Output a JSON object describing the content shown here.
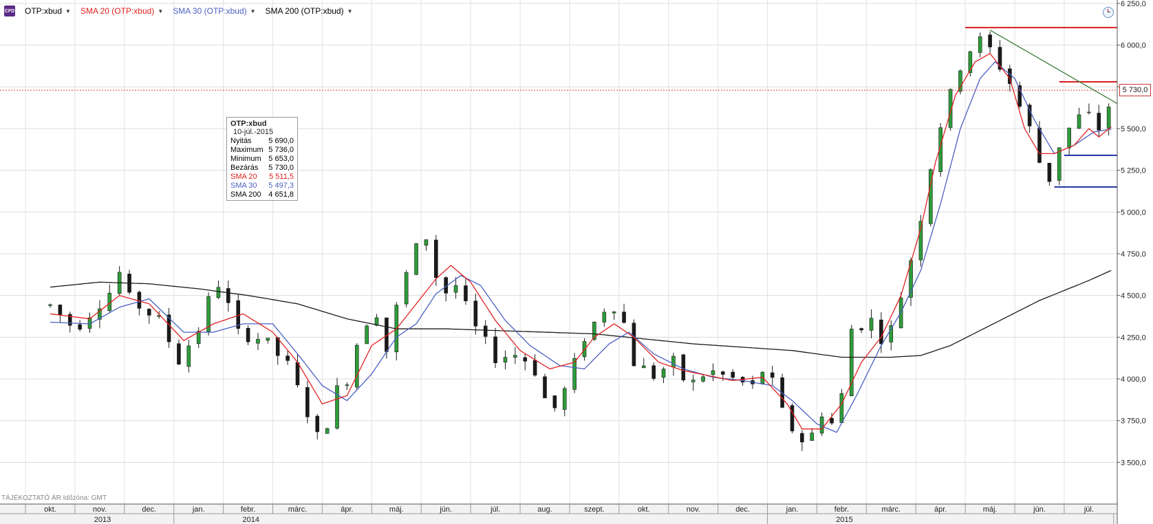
{
  "legend": [
    {
      "label": "OTP:xbud",
      "color": "#000000"
    },
    {
      "label": "SMA 20 (OTP:xbud)",
      "color": "#e02020"
    },
    {
      "label": "SMA 30 (OTP:xbud)",
      "color": "#4a5fc1"
    },
    {
      "label": "SMA 200 (OTP:xbud)",
      "color": "#000000"
    }
  ],
  "cfd_label": "CFD",
  "infobox": {
    "title": "OTP:xbud",
    "date": "10-júl.-2015",
    "rows": [
      {
        "label": "Nyitás",
        "value": "5 690,0",
        "color": "#000000"
      },
      {
        "label": "Maximum",
        "value": "5 736,0",
        "color": "#000000"
      },
      {
        "label": "Minimum",
        "value": "5 653,0",
        "color": "#000000"
      },
      {
        "label": "Bezárás",
        "value": "5 730,0",
        "color": "#000000"
      },
      {
        "label": "SMA 20",
        "value": "5 511,5",
        "color": "#e02020"
      },
      {
        "label": "SMA 30",
        "value": "5 497,3",
        "color": "#4a5fc1"
      },
      {
        "label": "SMA 200",
        "value": "4 651,8",
        "color": "#000000"
      }
    ]
  },
  "current_price_label": "5 730,0",
  "footer_note": "TÁJÉKOZTATÓ ÁR   Időzóna: GMT",
  "chart_data": {
    "type": "candlestick",
    "ylim": [
      3250,
      6250
    ],
    "yticks": [
      {
        "value": 3500,
        "label": "3 500,0"
      },
      {
        "value": 3750,
        "label": "3 750,0"
      },
      {
        "value": 4000,
        "label": "4 000,0"
      },
      {
        "value": 4250,
        "label": "4 250,0"
      },
      {
        "value": 4500,
        "label": "4 500,0"
      },
      {
        "value": 4750,
        "label": "4 750,0"
      },
      {
        "value": 5000,
        "label": "5 000,0"
      },
      {
        "value": 5250,
        "label": "5 250,0"
      },
      {
        "value": 5500,
        "label": "5 500,0"
      },
      {
        "value": 5750,
        "label": "5 750,0"
      },
      {
        "value": 6000,
        "label": "6 000,0"
      },
      {
        "value": 6250,
        "label": "6 250,0"
      }
    ],
    "months": [
      "okt.",
      "nov.",
      "dec.",
      "jan.",
      "febr.",
      "márc.",
      "ápr.",
      "máj.",
      "jún.",
      "júl.",
      "aug.",
      "szept.",
      "okt.",
      "nov.",
      "dec.",
      "jan.",
      "febr.",
      "márc.",
      "ápr.",
      "máj.",
      "jún.",
      "júl."
    ],
    "years": [
      {
        "label": "2013",
        "first_month": 0,
        "last_month": 2
      },
      {
        "label": "2014",
        "first_month": 3,
        "last_month": 14
      },
      {
        "label": "2015",
        "first_month": 15,
        "last_month": 21
      }
    ],
    "price_path": [
      [
        0,
        4440
      ],
      [
        0.5,
        4300
      ],
      [
        1.3,
        4550
      ],
      [
        1.5,
        4720
      ],
      [
        1.6,
        4480
      ],
      [
        2.2,
        4350
      ],
      [
        2.6,
        4110
      ],
      [
        3.0,
        4300
      ],
      [
        3.3,
        4550
      ],
      [
        3.5,
        4590
      ],
      [
        3.7,
        4280
      ],
      [
        4.3,
        4240
      ],
      [
        4.8,
        4080
      ],
      [
        5.2,
        3800
      ],
      [
        5.5,
        3580
      ],
      [
        5.7,
        3900
      ],
      [
        6.0,
        4000
      ],
      [
        6.3,
        4320
      ],
      [
        6.6,
        4400
      ],
      [
        6.8,
        4170
      ],
      [
        7.1,
        4550
      ],
      [
        7.4,
        4780
      ],
      [
        7.6,
        4850
      ],
      [
        7.9,
        4500
      ],
      [
        8.2,
        4560
      ],
      [
        8.6,
        4300
      ],
      [
        9.0,
        4130
      ],
      [
        9.5,
        4150
      ],
      [
        9.8,
        4050
      ],
      [
        10.1,
        3800
      ],
      [
        10.3,
        3850
      ],
      [
        10.8,
        4250
      ],
      [
        11.2,
        4420
      ],
      [
        11.5,
        4450
      ],
      [
        11.8,
        4100
      ],
      [
        12.2,
        4020
      ],
      [
        12.6,
        4100
      ],
      [
        12.9,
        3950
      ],
      [
        13.3,
        4050
      ],
      [
        13.8,
        4000
      ],
      [
        14.2,
        3950
      ],
      [
        14.5,
        4100
      ],
      [
        14.7,
        3850
      ],
      [
        15.0,
        3700
      ],
      [
        15.3,
        3600
      ],
      [
        15.6,
        3800
      ],
      [
        15.9,
        3700
      ],
      [
        16.2,
        4300
      ],
      [
        16.6,
        4350
      ],
      [
        16.9,
        4200
      ],
      [
        17.2,
        4500
      ],
      [
        17.4,
        4720
      ],
      [
        17.7,
        5100
      ],
      [
        17.9,
        5450
      ],
      [
        18.1,
        5600
      ],
      [
        18.3,
        5800
      ],
      [
        18.5,
        5950
      ],
      [
        18.7,
        6000
      ],
      [
        18.9,
        6050
      ],
      [
        19.1,
        5900
      ],
      [
        19.3,
        5850
      ],
      [
        19.5,
        5700
      ],
      [
        19.8,
        5500
      ],
      [
        20.0,
        5300
      ],
      [
        20.2,
        5200
      ],
      [
        20.4,
        5400
      ],
      [
        20.6,
        5500
      ],
      [
        20.9,
        5600
      ],
      [
        21.1,
        5550
      ],
      [
        21.3,
        5450
      ],
      [
        21.45,
        5730
      ]
    ],
    "sma20_path": [
      [
        0,
        4390
      ],
      [
        0.8,
        4360
      ],
      [
        1.4,
        4500
      ],
      [
        2.0,
        4450
      ],
      [
        2.7,
        4230
      ],
      [
        3.3,
        4330
      ],
      [
        3.9,
        4390
      ],
      [
        4.5,
        4280
      ],
      [
        5.0,
        4100
      ],
      [
        5.5,
        3850
      ],
      [
        6.0,
        3900
      ],
      [
        6.5,
        4200
      ],
      [
        7.0,
        4300
      ],
      [
        7.4,
        4450
      ],
      [
        7.8,
        4600
      ],
      [
        8.1,
        4680
      ],
      [
        8.5,
        4580
      ],
      [
        9.0,
        4350
      ],
      [
        9.5,
        4170
      ],
      [
        10.1,
        4060
      ],
      [
        10.6,
        4100
      ],
      [
        11.0,
        4250
      ],
      [
        11.4,
        4330
      ],
      [
        11.8,
        4250
      ],
      [
        12.3,
        4100
      ],
      [
        12.8,
        4050
      ],
      [
        13.3,
        4020
      ],
      [
        13.8,
        3990
      ],
      [
        14.4,
        4010
      ],
      [
        14.9,
        3850
      ],
      [
        15.2,
        3700
      ],
      [
        15.6,
        3700
      ],
      [
        16.0,
        3850
      ],
      [
        16.4,
        4100
      ],
      [
        16.8,
        4250
      ],
      [
        17.2,
        4500
      ],
      [
        17.6,
        4900
      ],
      [
        17.9,
        5300
      ],
      [
        18.3,
        5700
      ],
      [
        18.7,
        5900
      ],
      [
        19.0,
        5950
      ],
      [
        19.4,
        5800
      ],
      [
        19.7,
        5500
      ],
      [
        20.0,
        5350
      ],
      [
        20.3,
        5350
      ],
      [
        20.7,
        5400
      ],
      [
        21.0,
        5500
      ],
      [
        21.2,
        5450
      ],
      [
        21.45,
        5510
      ]
    ],
    "sma30_path": [
      [
        0,
        4340
      ],
      [
        0.8,
        4330
      ],
      [
        1.4,
        4430
      ],
      [
        2.0,
        4480
      ],
      [
        2.7,
        4280
      ],
      [
        3.3,
        4280
      ],
      [
        3.9,
        4330
      ],
      [
        4.5,
        4330
      ],
      [
        5.0,
        4150
      ],
      [
        5.5,
        3960
      ],
      [
        6.0,
        3870
      ],
      [
        6.5,
        4030
      ],
      [
        7.0,
        4250
      ],
      [
        7.4,
        4330
      ],
      [
        7.8,
        4510
      ],
      [
        8.3,
        4620
      ],
      [
        8.7,
        4560
      ],
      [
        9.2,
        4350
      ],
      [
        9.7,
        4200
      ],
      [
        10.3,
        4080
      ],
      [
        10.8,
        4060
      ],
      [
        11.3,
        4210
      ],
      [
        11.7,
        4280
      ],
      [
        12.2,
        4150
      ],
      [
        12.8,
        4060
      ],
      [
        13.4,
        4010
      ],
      [
        14.0,
        3990
      ],
      [
        14.6,
        3960
      ],
      [
        15.0,
        3870
      ],
      [
        15.5,
        3730
      ],
      [
        15.9,
        3680
      ],
      [
        16.3,
        3900
      ],
      [
        16.8,
        4200
      ],
      [
        17.2,
        4400
      ],
      [
        17.6,
        4650
      ],
      [
        18.0,
        5050
      ],
      [
        18.4,
        5500
      ],
      [
        18.8,
        5800
      ],
      [
        19.1,
        5900
      ],
      [
        19.5,
        5800
      ],
      [
        19.9,
        5550
      ],
      [
        20.3,
        5350
      ],
      [
        20.7,
        5400
      ],
      [
        21.1,
        5480
      ],
      [
        21.45,
        5497
      ]
    ],
    "sma200_path": [
      [
        0,
        4550
      ],
      [
        1.0,
        4580
      ],
      [
        2.0,
        4570
      ],
      [
        3.0,
        4540
      ],
      [
        4.0,
        4500
      ],
      [
        5.0,
        4450
      ],
      [
        6.0,
        4360
      ],
      [
        7.0,
        4300
      ],
      [
        8.0,
        4300
      ],
      [
        9.0,
        4290
      ],
      [
        10.0,
        4280
      ],
      [
        11.0,
        4270
      ],
      [
        12.0,
        4240
      ],
      [
        13.0,
        4210
      ],
      [
        14.0,
        4190
      ],
      [
        15.0,
        4170
      ],
      [
        16.0,
        4130
      ],
      [
        17.0,
        4130
      ],
      [
        17.6,
        4140
      ],
      [
        18.2,
        4200
      ],
      [
        19.0,
        4320
      ],
      [
        20.0,
        4470
      ],
      [
        21.0,
        4590
      ],
      [
        21.45,
        4650
      ]
    ],
    "annotations": {
      "red_levels": [
        {
          "value": 6105,
          "from": 18.5,
          "to": 22.3
        },
        {
          "value": 5780,
          "from": 20.4,
          "to": 22.3
        }
      ],
      "blue_levels": [
        {
          "value": 5340,
          "from": 20.5,
          "to": 22.3
        },
        {
          "value": 5150,
          "from": 20.3,
          "to": 22.3
        }
      ],
      "trendline": {
        "from": [
          19.0,
          6090
        ],
        "to": [
          22.3,
          5650
        ]
      },
      "current_price": 5730
    }
  }
}
